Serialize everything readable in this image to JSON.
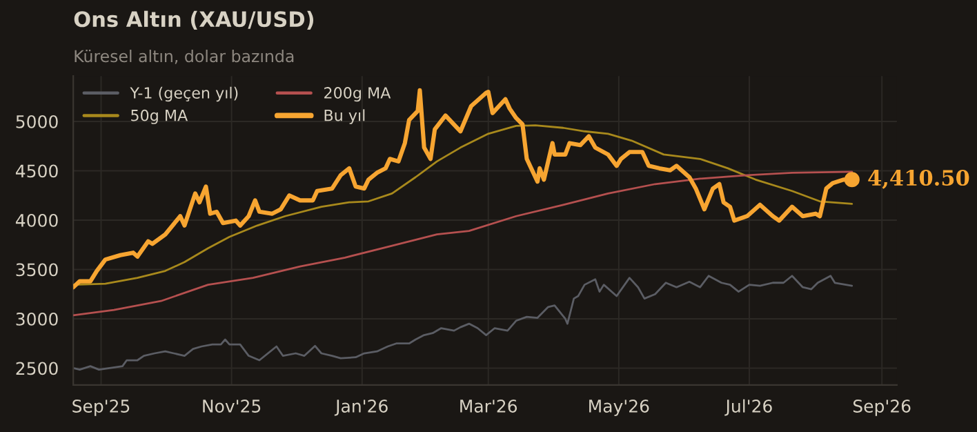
{
  "chart_data": {
    "type": "line",
    "title": "Ons Altın (XAU/USD)",
    "subtitle": "Küresel altın, dolar bazında",
    "xlim": [
      "2025-08-19",
      "2026-09-08"
    ],
    "ylim": [
      2330,
      5460
    ],
    "xticks": [
      {
        "value": "2025-09-01",
        "label": "Sep'25"
      },
      {
        "value": "2025-11-01",
        "label": "Nov'25"
      },
      {
        "value": "2026-01-01",
        "label": "Jan'26"
      },
      {
        "value": "2026-03-01",
        "label": "Mar'26"
      },
      {
        "value": "2026-05-01",
        "label": "May'26"
      },
      {
        "value": "2026-07-01",
        "label": "Jul'26"
      },
      {
        "value": "2026-09-01",
        "label": "Sep'26"
      }
    ],
    "yticks": [
      2500,
      3000,
      3500,
      4000,
      4500,
      5000
    ],
    "grid": true,
    "legend": "top left",
    "marker": "none",
    "line_style": "solid",
    "annotations": [
      {
        "text": "4,410.50",
        "x": "2026-08-18",
        "y": 4410.5
      }
    ],
    "series": [
      {
        "name": "Y-1 (geçen yıl)",
        "color": "#5b5d64",
        "x": [
          "2025-08-19",
          "2025-08-22",
          "2025-08-27",
          "2025-08-31",
          "2025-09-05",
          "2025-09-11",
          "2025-09-13",
          "2025-09-18",
          "2025-09-21",
          "2025-09-26",
          "2025-10-01",
          "2025-10-05",
          "2025-10-10",
          "2025-10-14",
          "2025-10-18",
          "2025-10-23",
          "2025-10-27",
          "2025-10-29",
          "2025-10-31",
          "2025-11-05",
          "2025-11-09",
          "2025-11-14",
          "2025-11-22",
          "2025-11-25",
          "2025-12-01",
          "2025-12-05",
          "2025-12-10",
          "2025-12-13",
          "2025-12-18",
          "2025-12-22",
          "2025-12-29",
          "2026-01-02",
          "2026-01-08",
          "2026-01-13",
          "2026-01-17",
          "2026-01-23",
          "2026-01-26",
          "2026-01-30",
          "2026-02-03",
          "2026-02-07",
          "2026-02-13",
          "2026-02-16",
          "2026-02-20",
          "2026-02-24",
          "2026-02-28",
          "2026-03-04",
          "2026-03-10",
          "2026-03-14",
          "2026-03-19",
          "2026-03-24",
          "2026-03-29",
          "2026-04-01",
          "2026-04-06",
          "2026-04-07",
          "2026-04-10",
          "2026-04-12",
          "2026-04-15",
          "2026-04-20",
          "2026-04-22",
          "2026-04-24",
          "2026-04-30",
          "2026-05-06",
          "2026-05-10",
          "2026-05-13",
          "2026-05-18",
          "2026-05-23",
          "2026-05-28",
          "2026-06-03",
          "2026-06-08",
          "2026-06-12",
          "2026-06-18",
          "2026-06-22",
          "2026-06-26",
          "2026-07-01",
          "2026-07-06",
          "2026-07-12",
          "2026-07-17",
          "2026-07-21",
          "2026-07-26",
          "2026-07-30",
          "2026-08-02",
          "2026-08-08",
          "2026-08-10",
          "2026-08-18"
        ],
        "values": [
          2500,
          2485,
          2520,
          2485,
          2500,
          2520,
          2580,
          2580,
          2625,
          2650,
          2670,
          2650,
          2625,
          2695,
          2720,
          2740,
          2740,
          2790,
          2740,
          2740,
          2625,
          2580,
          2720,
          2625,
          2650,
          2625,
          2725,
          2650,
          2625,
          2600,
          2610,
          2650,
          2670,
          2720,
          2750,
          2750,
          2790,
          2835,
          2855,
          2905,
          2880,
          2915,
          2950,
          2905,
          2835,
          2905,
          2880,
          2980,
          3020,
          3010,
          3120,
          3135,
          3000,
          2950,
          3205,
          3230,
          3345,
          3400,
          3275,
          3345,
          3230,
          3415,
          3320,
          3205,
          3250,
          3365,
          3320,
          3375,
          3320,
          3435,
          3365,
          3345,
          3275,
          3345,
          3335,
          3365,
          3365,
          3435,
          3320,
          3300,
          3365,
          3435,
          3365,
          3335
        ]
      },
      {
        "name": "50g MA",
        "color": "#a8891c",
        "x": [
          "2025-08-19",
          "2025-09-03",
          "2025-09-18",
          "2025-10-01",
          "2025-10-10",
          "2025-10-21",
          "2025-10-31",
          "2025-11-13",
          "2025-11-26",
          "2025-12-13",
          "2025-12-26",
          "2026-01-04",
          "2026-01-15",
          "2026-01-26",
          "2026-02-05",
          "2026-02-16",
          "2026-03-01",
          "2026-03-14",
          "2026-03-23",
          "2026-04-05",
          "2026-04-15",
          "2026-04-26",
          "2026-05-07",
          "2026-05-22",
          "2026-06-08",
          "2026-06-21",
          "2026-07-04",
          "2026-07-21",
          "2026-08-03",
          "2026-08-18"
        ],
        "values": [
          3345,
          3355,
          3415,
          3485,
          3575,
          3715,
          3830,
          3945,
          4040,
          4135,
          4180,
          4190,
          4270,
          4435,
          4595,
          4735,
          4875,
          4955,
          4960,
          4935,
          4900,
          4875,
          4805,
          4665,
          4620,
          4525,
          4410,
          4295,
          4190,
          4165
        ]
      },
      {
        "name": "200g MA",
        "color": "#b5504f",
        "x": [
          "2025-08-19",
          "2025-09-07",
          "2025-09-29",
          "2025-10-21",
          "2025-11-11",
          "2025-12-03",
          "2025-12-24",
          "2026-01-15",
          "2026-02-05",
          "2026-02-20",
          "2026-03-14",
          "2026-04-05",
          "2026-04-26",
          "2026-05-18",
          "2026-06-08",
          "2026-06-30",
          "2026-07-21",
          "2026-08-18"
        ],
        "values": [
          3035,
          3090,
          3180,
          3345,
          3415,
          3530,
          3620,
          3740,
          3855,
          3890,
          4040,
          4155,
          4270,
          4365,
          4420,
          4455,
          4480,
          4490
        ]
      },
      {
        "name": "Bu yıl",
        "color": "#f7a531",
        "x": [
          "2025-08-19",
          "2025-08-22",
          "2025-08-27",
          "2025-08-30",
          "2025-09-03",
          "2025-09-10",
          "2025-09-16",
          "2025-09-18",
          "2025-09-23",
          "2025-09-25",
          "2025-10-01",
          "2025-10-08",
          "2025-10-10",
          "2025-10-15",
          "2025-10-17",
          "2025-10-20",
          "2025-10-22",
          "2025-10-25",
          "2025-10-28",
          "2025-11-03",
          "2025-11-05",
          "2025-11-09",
          "2025-11-12",
          "2025-11-14",
          "2025-11-20",
          "2025-11-24",
          "2025-11-28",
          "2025-12-03",
          "2025-12-09",
          "2025-12-11",
          "2025-12-18",
          "2025-12-22",
          "2025-12-26",
          "2025-12-29",
          "2026-01-02",
          "2026-01-04",
          "2026-01-08",
          "2026-01-12",
          "2026-01-14",
          "2026-01-18",
          "2026-01-21",
          "2026-01-23",
          "2026-01-27",
          "2026-01-28",
          "2026-01-30",
          "2026-02-02",
          "2026-02-04",
          "2026-02-09",
          "2026-02-14",
          "2026-02-16",
          "2026-02-21",
          "2026-02-28",
          "2026-03-01",
          "2026-03-03",
          "2026-03-09",
          "2026-03-11",
          "2026-03-14",
          "2026-03-17",
          "2026-03-19",
          "2026-03-24",
          "2026-03-25",
          "2026-03-27",
          "2026-03-31",
          "2026-04-01",
          "2026-04-06",
          "2026-04-08",
          "2026-04-13",
          "2026-04-17",
          "2026-04-20",
          "2026-04-26",
          "2026-04-30",
          "2026-05-02",
          "2026-05-06",
          "2026-05-12",
          "2026-05-15",
          "2026-05-20",
          "2026-05-25",
          "2026-05-28",
          "2026-06-03",
          "2026-06-06",
          "2026-06-10",
          "2026-06-14",
          "2026-06-17",
          "2026-06-19",
          "2026-06-22",
          "2026-06-24",
          "2026-06-30",
          "2026-07-06",
          "2026-07-12",
          "2026-07-15",
          "2026-07-21",
          "2026-07-26",
          "2026-08-01",
          "2026-08-03",
          "2026-08-06",
          "2026-08-09",
          "2026-08-14",
          "2026-08-18"
        ],
        "values": [
          3320,
          3380,
          3380,
          3485,
          3600,
          3645,
          3670,
          3630,
          3785,
          3760,
          3855,
          4040,
          3945,
          4270,
          4180,
          4340,
          4065,
          4085,
          3970,
          3995,
          3945,
          4040,
          4200,
          4085,
          4065,
          4110,
          4250,
          4200,
          4200,
          4295,
          4320,
          4455,
          4525,
          4340,
          4320,
          4410,
          4480,
          4525,
          4620,
          4595,
          4780,
          5015,
          5105,
          5315,
          4735,
          4620,
          4920,
          5060,
          4945,
          4900,
          5155,
          5290,
          5300,
          5085,
          5225,
          5130,
          5035,
          4970,
          4620,
          4390,
          4525,
          4410,
          4780,
          4665,
          4665,
          4780,
          4760,
          4850,
          4735,
          4665,
          4550,
          4620,
          4690,
          4690,
          4550,
          4525,
          4505,
          4550,
          4435,
          4320,
          4110,
          4320,
          4365,
          4180,
          4135,
          3995,
          4040,
          4155,
          4040,
          3995,
          4135,
          4040,
          4065,
          4040,
          4320,
          4375,
          4410,
          4410.5
        ]
      }
    ]
  }
}
